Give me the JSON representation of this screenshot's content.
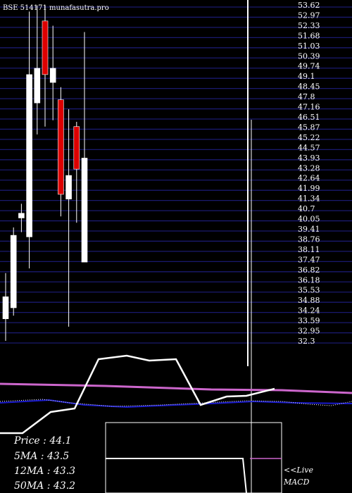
{
  "header": "BSE 514171 munafasutra.pro",
  "colors": {
    "background": "#000000",
    "grid": "#1a1a6e",
    "up_candle": "#ffffff",
    "down_candle": "#dd0000",
    "indicator_white": "#ffffff",
    "indicator_magenta": "#cc66cc",
    "indicator_blue": "#1a1acc"
  },
  "chart_data": {
    "type": "candlestick",
    "y_ticks": [
      "53.62",
      "52.97",
      "52.33",
      "51.68",
      "51.03",
      "50.39",
      "49.74",
      "49.1",
      "48.45",
      "47.8",
      "47.16",
      "46.51",
      "45.87",
      "45.22",
      "44.57",
      "43.93",
      "43.28",
      "42.64",
      "41.99",
      "41.34",
      "40.7",
      "40.05",
      "39.41",
      "38.76",
      "38.11",
      "37.47",
      "36.82",
      "36.18",
      "35.53",
      "34.88",
      "34.24",
      "33.59",
      "32.95",
      "32.3"
    ],
    "ylim": [
      32.3,
      53.62
    ],
    "candles": [
      {
        "open": 33.7,
        "close": 35.1,
        "high": 36.6,
        "low": 32.3
      },
      {
        "open": 34.4,
        "close": 39.0,
        "high": 39.5,
        "low": 33.9
      },
      {
        "open": 40.1,
        "close": 40.4,
        "high": 41.0,
        "low": 39.2
      },
      {
        "open": 38.9,
        "close": 49.2,
        "high": 53.2,
        "low": 36.9
      },
      {
        "open": 47.4,
        "close": 49.6,
        "high": 53.6,
        "low": 45.4
      },
      {
        "open": 52.6,
        "close": 49.2,
        "high": 53.6,
        "low": 45.9
      },
      {
        "open": 48.7,
        "close": 49.6,
        "high": 52.3,
        "low": 46.3
      },
      {
        "open": 47.6,
        "close": 41.6,
        "high": 48.4,
        "low": 40.2
      },
      {
        "open": 41.3,
        "close": 42.8,
        "high": 47.0,
        "low": 33.2
      },
      {
        "open": 45.9,
        "close": 43.2,
        "high": 46.2,
        "low": 39.8
      },
      {
        "open": 37.3,
        "close": 43.9,
        "high": 51.9,
        "low": 37.3
      }
    ],
    "lower_panel": {
      "ma_white": [
        [
          0,
          615
        ],
        [
          32,
          615
        ],
        [
          72,
          585
        ],
        [
          106,
          580
        ],
        [
          140,
          510
        ],
        [
          180,
          505
        ],
        [
          212,
          512
        ],
        [
          250,
          510
        ],
        [
          285,
          575
        ],
        [
          322,
          563
        ],
        [
          350,
          562
        ],
        [
          390,
          552
        ]
      ],
      "ma_magenta": [
        [
          0,
          545
        ],
        [
          150,
          548
        ],
        [
          300,
          553
        ],
        [
          400,
          554
        ],
        [
          500,
          558
        ]
      ],
      "ma_blue": [
        [
          0,
          572
        ],
        [
          70,
          568
        ],
        [
          120,
          575
        ],
        [
          180,
          578
        ],
        [
          250,
          575
        ],
        [
          300,
          573
        ],
        [
          360,
          570
        ],
        [
          420,
          572
        ],
        [
          500,
          573
        ]
      ],
      "ma_blue_dotted": [
        [
          0,
          570
        ],
        [
          60,
          567
        ],
        [
          100,
          572
        ],
        [
          160,
          577
        ],
        [
          230,
          575
        ],
        [
          290,
          572
        ],
        [
          350,
          569
        ],
        [
          400,
          570
        ],
        [
          440,
          574
        ],
        [
          470,
          576
        ],
        [
          500,
          570
        ]
      ]
    }
  },
  "legend": {
    "price": "Price   : 44.1",
    "ma5": "5MA   : 43.5",
    "ma12": "12MA : 43.3",
    "ma50": "50MA : 43.2"
  },
  "live_label": "<<Live",
  "macd_label": "MACD"
}
